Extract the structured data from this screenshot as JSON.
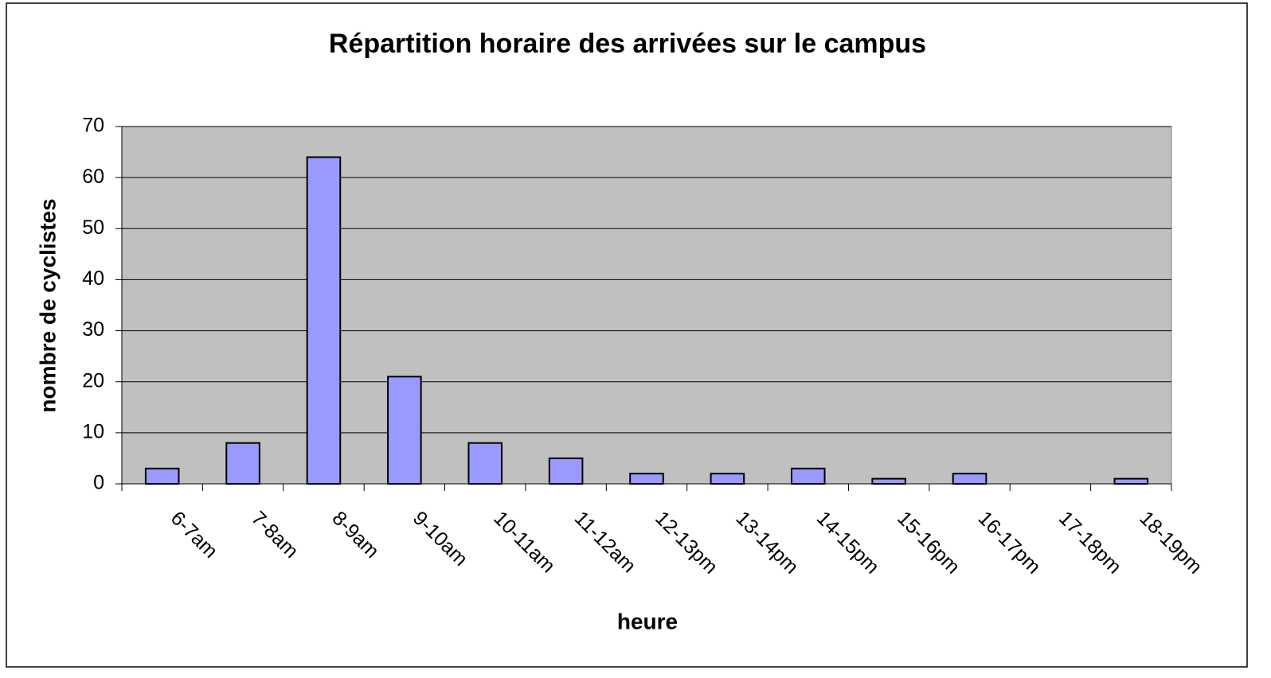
{
  "chart_data": {
    "type": "bar",
    "title": "Répartition horaire des arrivées sur le campus",
    "xlabel": "heure",
    "ylabel": "nombre de cyclistes",
    "categories": [
      "6-7am",
      "7-8am",
      "8-9am",
      "9-10am",
      "10-11am",
      "11-12am",
      "12-13pm",
      "13-14pm",
      "14-15pm",
      "15-16pm",
      "16-17pm",
      "17-18pm",
      "18-19pm"
    ],
    "values": [
      3,
      8,
      64,
      21,
      8,
      5,
      2,
      2,
      3,
      1,
      2,
      0,
      1
    ],
    "color": "#9999ff",
    "background": "#c0c0c0",
    "ylim": [
      0,
      70
    ],
    "yticks": [
      0,
      10,
      20,
      30,
      40,
      50,
      60,
      70
    ],
    "grid": true
  }
}
